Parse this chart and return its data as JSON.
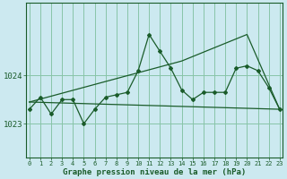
{
  "background_color": "#cce9f0",
  "grid_color": "#88c4a8",
  "line_color": "#1a5c2a",
  "x_labels": [
    "0",
    "1",
    "2",
    "3",
    "4",
    "5",
    "6",
    "7",
    "8",
    "9",
    "10",
    "11",
    "12",
    "13",
    "14",
    "15",
    "16",
    "17",
    "18",
    "19",
    "20",
    "21",
    "22",
    "23"
  ],
  "y_ticks": [
    1023,
    1024
  ],
  "ylim": [
    1022.3,
    1025.5
  ],
  "xlim": [
    -0.3,
    23.3
  ],
  "xlabel": "Graphe pression niveau de la mer (hPa)",
  "series1_y": [
    1023.3,
    1023.55,
    1023.2,
    1023.5,
    1023.5,
    1023.0,
    1023.3,
    1023.55,
    1023.6,
    1023.65,
    1024.1,
    1024.85,
    1024.5,
    1024.15,
    1023.7,
    1023.5,
    1023.65,
    1023.65,
    1023.65,
    1024.15,
    1024.2,
    1024.1,
    1023.75,
    1023.3
  ],
  "series2_x": [
    0,
    23
  ],
  "series2_y": [
    1023.45,
    1023.3
  ],
  "series3_x": [
    0,
    14,
    20,
    23
  ],
  "series3_y": [
    1023.45,
    1024.3,
    1024.85,
    1023.3
  ],
  "figwidth": 3.2,
  "figheight": 2.0,
  "dpi": 100
}
